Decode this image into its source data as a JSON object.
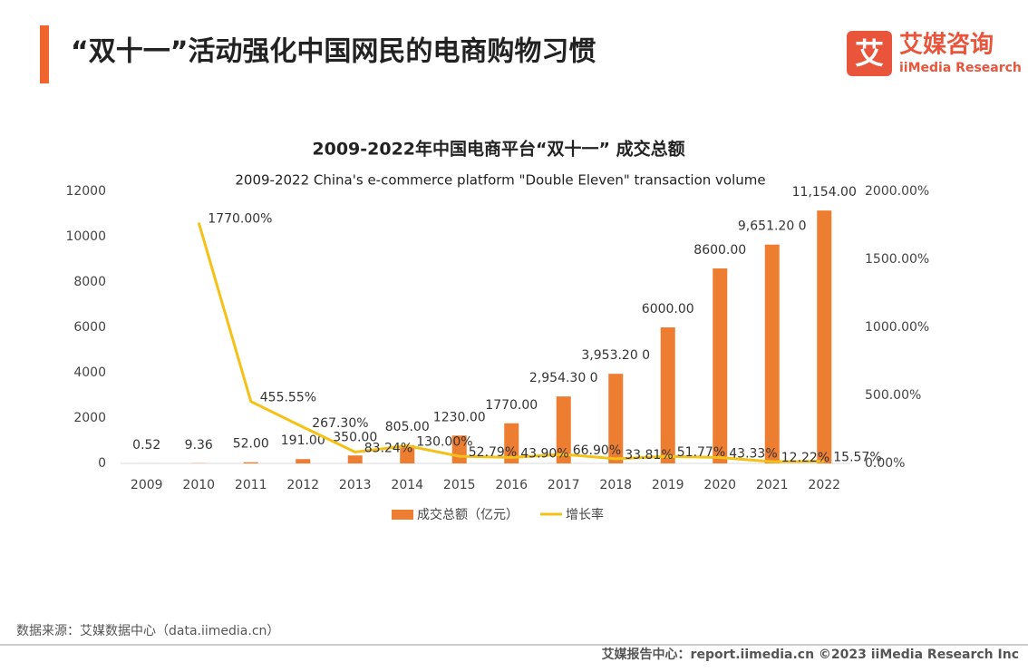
{
  "header": {
    "title": "“双十一”活动强化中国网民的电商购物习惯"
  },
  "brand": {
    "cn": "艾媒咨询",
    "en": "iiMedia Research"
  },
  "chart_data": {
    "type": "bar_line",
    "title": "2009-2022年中国电商平台“双十一” 成交总额",
    "subtitle": "2009-2022 China's e-commerce platform \"Double Eleven\" transaction volume",
    "categories": [
      "2009",
      "2010",
      "2011",
      "2012",
      "2013",
      "2014",
      "2015",
      "2016",
      "2017",
      "2018",
      "2019",
      "2020",
      "2021",
      "2022"
    ],
    "series": [
      {
        "name": "成交总额（亿元）",
        "color": "#ED7D31",
        "type": "bar",
        "values": [
          0.52,
          9.36,
          52,
          191,
          350,
          805,
          1230,
          1770,
          2954.3,
          3953.2,
          6000,
          8600,
          9651.2,
          11154
        ],
        "value_labels": [
          "0.52",
          "9.36",
          "52.00",
          "191.00",
          "350.00",
          "805.00",
          "1230.00",
          "1770.00",
          "2,954.30 0",
          "3,953.20 0",
          "6000.00",
          "8600.00",
          "9,651.20 0",
          "11,154.00"
        ]
      },
      {
        "name": "增长率",
        "color": "#F5C116",
        "type": "line",
        "axis": "y2",
        "values": [
          null,
          1770,
          455.55,
          267.3,
          83.24,
          130,
          52.79,
          43.9,
          66.9,
          33.81,
          51.77,
          43.33,
          12.22,
          15.57
        ],
        "value_labels": [
          null,
          "1770.00%",
          "455.55%",
          "267.30%",
          "83.24%",
          "130.00%",
          "52.79%",
          "43.90%",
          "66.90%",
          "33.81%",
          "51.77%",
          "43.33%",
          "12.22%",
          "15.57%"
        ]
      }
    ],
    "ylim": [
      0,
      12000
    ],
    "yticks": [
      0,
      2000,
      4000,
      6000,
      8000,
      10000,
      12000
    ],
    "y2lim": [
      0,
      2000
    ],
    "y2ticks": [
      {
        "value": 0,
        "label": "0.00%"
      },
      {
        "value": 500,
        "label": "500.00%"
      },
      {
        "value": 1000,
        "label": "1000.00%"
      },
      {
        "value": 1500,
        "label": "1500.00%"
      },
      {
        "value": 2000,
        "label": "2000.00%"
      }
    ],
    "legend": "bottom"
  },
  "source": "数据来源：艾媒数据中心（data.iimedia.cn）",
  "footer": "艾媒报告中心：report.iimedia.cn  ©2023  iiMedia Research  Inc"
}
